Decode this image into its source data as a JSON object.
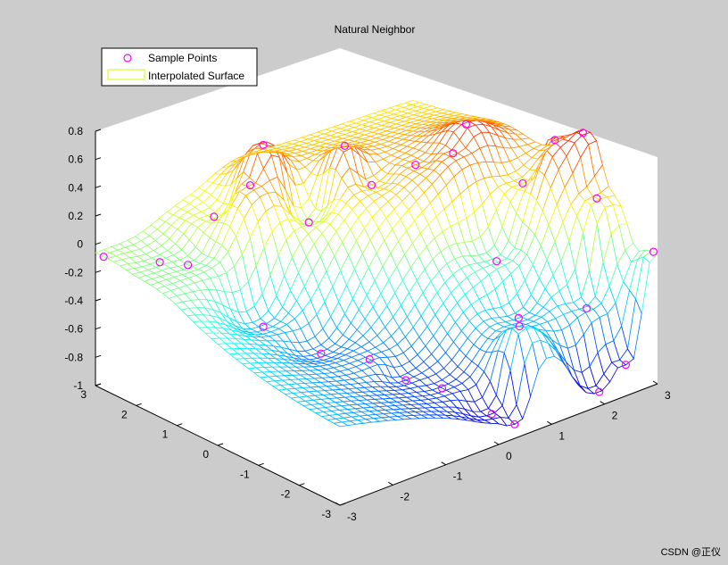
{
  "figure": {
    "background": "#cccccc",
    "watermark": "CSDN @正仪"
  },
  "chart_data": {
    "type": "surface",
    "title": "Natural Neighbor",
    "legend": {
      "placement": "top-left",
      "entries": [
        {
          "label": "Sample Points",
          "marker": "circle",
          "color": "#ff00ff"
        },
        {
          "label": "Interpolated Surface",
          "marker": "patch",
          "color": "#ccff00"
        }
      ]
    },
    "xlim": [
      -3,
      3
    ],
    "ylim": [
      -3,
      3
    ],
    "zlim": [
      -1,
      0.8
    ],
    "x_ticks": [
      "-3",
      "-2",
      "-1",
      "0",
      "1",
      "2",
      "3"
    ],
    "y_ticks": [
      "-3",
      "-2",
      "-1",
      "0",
      "1",
      "2",
      "3"
    ],
    "z_ticks": [
      "-1",
      "-0.8",
      "-0.6",
      "-0.4",
      "-0.2",
      "0",
      "0.2",
      "0.4",
      "0.6",
      "0.8"
    ],
    "colormap": "jet",
    "grid_resolution": 41,
    "surface_style": "mesh",
    "sample_points": [
      {
        "x": -3.0,
        "y": 2.8,
        "z": -0.06
      },
      {
        "x": -2.4,
        "y": 2.2,
        "z": -0.1
      },
      {
        "x": -2.1,
        "y": 1.9,
        "z": -0.12
      },
      {
        "x": -1.6,
        "y": 0.7,
        "z": -0.46
      },
      {
        "x": -1.2,
        "y": -0.2,
        "z": -0.58
      },
      {
        "x": -0.9,
        "y": -1.0,
        "z": -0.55
      },
      {
        "x": -0.6,
        "y": -1.5,
        "z": -0.67
      },
      {
        "x": -0.3,
        "y": -2.0,
        "z": -0.7
      },
      {
        "x": 0.1,
        "y": -2.7,
        "z": -0.84
      },
      {
        "x": 0.3,
        "y": -3.0,
        "z": -0.9
      },
      {
        "x": -1.3,
        "y": 2.3,
        "z": 0.05
      },
      {
        "x": -1.0,
        "y": 1.8,
        "z": 0.3
      },
      {
        "x": -0.6,
        "y": 2.0,
        "z": 0.5
      },
      {
        "x": -0.2,
        "y": 1.4,
        "z": -0.02
      },
      {
        "x": 0.4,
        "y": 1.3,
        "z": 0.45
      },
      {
        "x": 0.6,
        "y": 0.9,
        "z": 0.2
      },
      {
        "x": 1.2,
        "y": 0.6,
        "z": 0.3
      },
      {
        "x": 1.6,
        "y": 0.2,
        "z": 0.38
      },
      {
        "x": 2.0,
        "y": 0.4,
        "z": 0.5
      },
      {
        "x": 2.3,
        "y": -0.6,
        "z": 0.18
      },
      {
        "x": 2.6,
        "y": -1.0,
        "z": 0.5
      },
      {
        "x": 2.9,
        "y": -1.3,
        "z": 0.55
      },
      {
        "x": 2.7,
        "y": -1.9,
        "z": 0.2
      },
      {
        "x": 1.5,
        "y": -1.0,
        "z": -0.2
      },
      {
        "x": 1.3,
        "y": -1.8,
        "z": -0.46
      },
      {
        "x": 2.2,
        "y": -2.3,
        "z": -0.45
      },
      {
        "x": 3.0,
        "y": -2.9,
        "z": -0.08
      },
      {
        "x": 2.4,
        "y": -3.0,
        "z": -0.78
      },
      {
        "x": 1.9,
        "y": -3.0,
        "z": -0.9
      },
      {
        "x": 0.7,
        "y": -2.6,
        "z": -0.32
      }
    ]
  }
}
